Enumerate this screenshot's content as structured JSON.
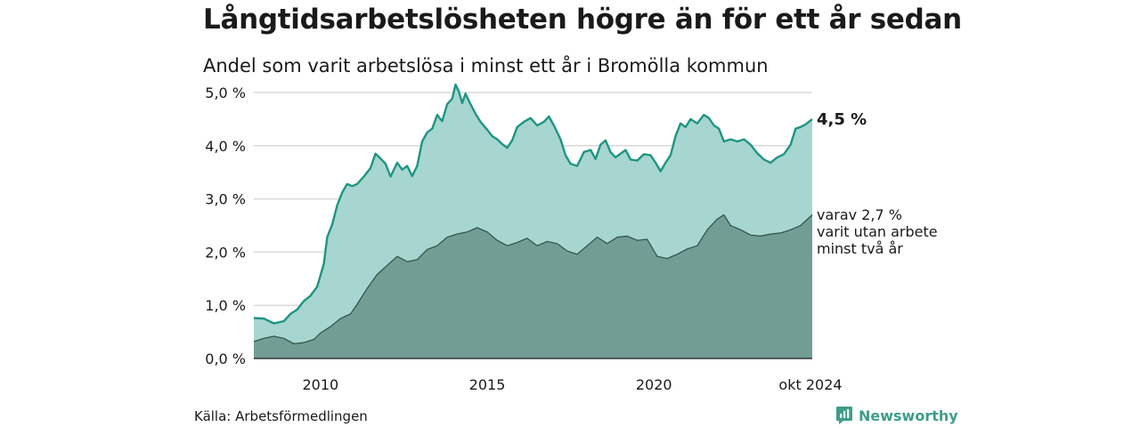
{
  "title": "Långtidsarbetslösheten högre än för ett år sedan",
  "subtitle": "Andel som varit arbetslösa i minst ett år i Bromölla kommun",
  "source": "Källa: Arbetsförmedlingen",
  "brand": {
    "name": "Newsworthy",
    "icon": "newsworthy-logo-icon",
    "color": "#3d9e8a"
  },
  "chart_data": {
    "type": "area",
    "ylim": [
      0,
      5.2
    ],
    "y_ticks": [
      {
        "value": 0,
        "label": "0,0 %"
      },
      {
        "value": 1,
        "label": "1,0 %"
      },
      {
        "value": 2,
        "label": "2,0 %"
      },
      {
        "value": 3,
        "label": "3,0 %"
      },
      {
        "value": 4,
        "label": "4,0 %"
      },
      {
        "value": 5,
        "label": "5,0 %"
      }
    ],
    "x_ticks": [
      {
        "value": 2010,
        "label": "2010"
      },
      {
        "value": 2015,
        "label": "2015"
      },
      {
        "value": 2020,
        "label": "2020"
      },
      {
        "value": 2024.75,
        "label": "okt 2024"
      }
    ],
    "xlim": [
      2008.0,
      2024.75
    ],
    "grid": true,
    "colors": {
      "total_line": "#1f9483",
      "total_fill": "#a6d6cf",
      "long_line": "#2f4f47",
      "long_fill": "#729d95",
      "grid": "#d9d9d9"
    },
    "series": [
      {
        "key": "total",
        "label": "4,5 %",
        "points": [
          [
            2008.0,
            0.76
          ],
          [
            2008.3,
            0.75
          ],
          [
            2008.6,
            0.66
          ],
          [
            2008.9,
            0.7
          ],
          [
            2009.1,
            0.84
          ],
          [
            2009.3,
            0.92
          ],
          [
            2009.5,
            1.08
          ],
          [
            2009.7,
            1.18
          ],
          [
            2009.9,
            1.35
          ],
          [
            2010.1,
            1.78
          ],
          [
            2010.2,
            2.28
          ],
          [
            2010.35,
            2.52
          ],
          [
            2010.5,
            2.88
          ],
          [
            2010.65,
            3.12
          ],
          [
            2010.8,
            3.28
          ],
          [
            2010.95,
            3.24
          ],
          [
            2011.1,
            3.28
          ],
          [
            2011.3,
            3.42
          ],
          [
            2011.5,
            3.58
          ],
          [
            2011.65,
            3.85
          ],
          [
            2011.8,
            3.76
          ],
          [
            2011.95,
            3.66
          ],
          [
            2012.1,
            3.42
          ],
          [
            2012.3,
            3.68
          ],
          [
            2012.45,
            3.55
          ],
          [
            2012.6,
            3.62
          ],
          [
            2012.75,
            3.43
          ],
          [
            2012.9,
            3.62
          ],
          [
            2013.05,
            4.08
          ],
          [
            2013.2,
            4.25
          ],
          [
            2013.35,
            4.32
          ],
          [
            2013.5,
            4.58
          ],
          [
            2013.65,
            4.46
          ],
          [
            2013.8,
            4.78
          ],
          [
            2013.95,
            4.88
          ],
          [
            2014.05,
            5.15
          ],
          [
            2014.15,
            5.02
          ],
          [
            2014.25,
            4.8
          ],
          [
            2014.35,
            4.98
          ],
          [
            2014.5,
            4.78
          ],
          [
            2014.65,
            4.6
          ],
          [
            2014.8,
            4.45
          ],
          [
            2015.0,
            4.3
          ],
          [
            2015.15,
            4.18
          ],
          [
            2015.3,
            4.12
          ],
          [
            2015.45,
            4.03
          ],
          [
            2015.6,
            3.96
          ],
          [
            2015.75,
            4.1
          ],
          [
            2015.9,
            4.35
          ],
          [
            2016.1,
            4.45
          ],
          [
            2016.3,
            4.52
          ],
          [
            2016.5,
            4.38
          ],
          [
            2016.7,
            4.45
          ],
          [
            2016.85,
            4.55
          ],
          [
            2017.0,
            4.38
          ],
          [
            2017.2,
            4.12
          ],
          [
            2017.35,
            3.82
          ],
          [
            2017.5,
            3.66
          ],
          [
            2017.7,
            3.62
          ],
          [
            2017.9,
            3.88
          ],
          [
            2018.1,
            3.92
          ],
          [
            2018.25,
            3.75
          ],
          [
            2018.4,
            4.02
          ],
          [
            2018.55,
            4.1
          ],
          [
            2018.7,
            3.88
          ],
          [
            2018.85,
            3.78
          ],
          [
            2019.0,
            3.85
          ],
          [
            2019.15,
            3.92
          ],
          [
            2019.3,
            3.74
          ],
          [
            2019.5,
            3.72
          ],
          [
            2019.7,
            3.84
          ],
          [
            2019.9,
            3.82
          ],
          [
            2020.05,
            3.68
          ],
          [
            2020.2,
            3.52
          ],
          [
            2020.35,
            3.68
          ],
          [
            2020.5,
            3.82
          ],
          [
            2020.65,
            4.18
          ],
          [
            2020.8,
            4.42
          ],
          [
            2020.95,
            4.35
          ],
          [
            2021.1,
            4.5
          ],
          [
            2021.3,
            4.42
          ],
          [
            2021.5,
            4.58
          ],
          [
            2021.65,
            4.52
          ],
          [
            2021.8,
            4.38
          ],
          [
            2021.95,
            4.32
          ],
          [
            2022.1,
            4.08
          ],
          [
            2022.3,
            4.12
          ],
          [
            2022.5,
            4.08
          ],
          [
            2022.7,
            4.12
          ],
          [
            2022.9,
            4.02
          ],
          [
            2023.1,
            3.86
          ],
          [
            2023.3,
            3.74
          ],
          [
            2023.5,
            3.68
          ],
          [
            2023.7,
            3.78
          ],
          [
            2023.9,
            3.84
          ],
          [
            2024.1,
            4.02
          ],
          [
            2024.25,
            4.32
          ],
          [
            2024.4,
            4.35
          ],
          [
            2024.55,
            4.4
          ],
          [
            2024.75,
            4.5
          ]
        ]
      },
      {
        "key": "long",
        "label_lines": [
          "varav 2,7 %",
          "varit utan arbete",
          "minst två år"
        ],
        "points": [
          [
            2008.0,
            0.32
          ],
          [
            2008.3,
            0.38
          ],
          [
            2008.6,
            0.42
          ],
          [
            2008.9,
            0.38
          ],
          [
            2009.2,
            0.28
          ],
          [
            2009.5,
            0.3
          ],
          [
            2009.8,
            0.36
          ],
          [
            2010.0,
            0.48
          ],
          [
            2010.3,
            0.6
          ],
          [
            2010.6,
            0.75
          ],
          [
            2010.9,
            0.84
          ],
          [
            2011.1,
            1.02
          ],
          [
            2011.4,
            1.32
          ],
          [
            2011.7,
            1.58
          ],
          [
            2012.0,
            1.75
          ],
          [
            2012.3,
            1.92
          ],
          [
            2012.6,
            1.82
          ],
          [
            2012.9,
            1.86
          ],
          [
            2013.2,
            2.05
          ],
          [
            2013.5,
            2.12
          ],
          [
            2013.8,
            2.28
          ],
          [
            2014.1,
            2.34
          ],
          [
            2014.4,
            2.38
          ],
          [
            2014.7,
            2.46
          ],
          [
            2015.0,
            2.38
          ],
          [
            2015.3,
            2.22
          ],
          [
            2015.6,
            2.12
          ],
          [
            2015.9,
            2.18
          ],
          [
            2016.2,
            2.26
          ],
          [
            2016.5,
            2.12
          ],
          [
            2016.8,
            2.2
          ],
          [
            2017.1,
            2.16
          ],
          [
            2017.4,
            2.02
          ],
          [
            2017.7,
            1.96
          ],
          [
            2018.0,
            2.12
          ],
          [
            2018.3,
            2.28
          ],
          [
            2018.6,
            2.16
          ],
          [
            2018.9,
            2.28
          ],
          [
            2019.2,
            2.3
          ],
          [
            2019.5,
            2.22
          ],
          [
            2019.8,
            2.24
          ],
          [
            2020.1,
            1.92
          ],
          [
            2020.4,
            1.88
          ],
          [
            2020.7,
            1.96
          ],
          [
            2021.0,
            2.06
          ],
          [
            2021.3,
            2.12
          ],
          [
            2021.6,
            2.42
          ],
          [
            2021.9,
            2.62
          ],
          [
            2022.1,
            2.7
          ],
          [
            2022.3,
            2.5
          ],
          [
            2022.6,
            2.42
          ],
          [
            2022.9,
            2.32
          ],
          [
            2023.2,
            2.3
          ],
          [
            2023.5,
            2.34
          ],
          [
            2023.8,
            2.36
          ],
          [
            2024.1,
            2.42
          ],
          [
            2024.4,
            2.5
          ],
          [
            2024.75,
            2.7
          ]
        ]
      }
    ]
  }
}
